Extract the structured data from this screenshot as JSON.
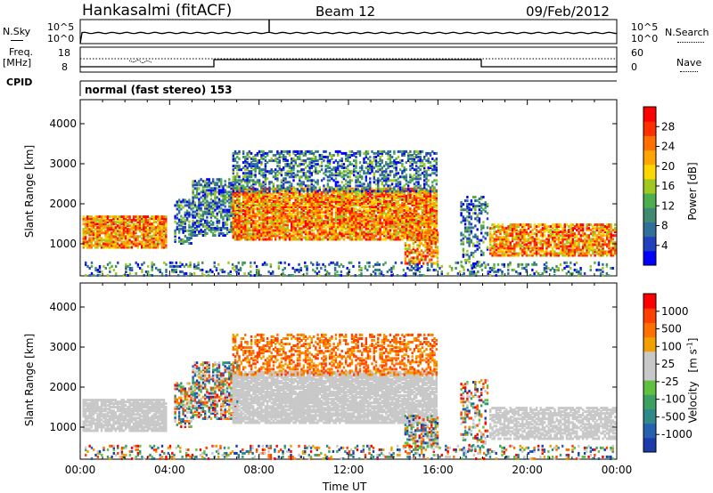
{
  "header": {
    "station": "Hankasalmi (fitACF)",
    "beam": "Beam 12",
    "date": "09/Feb/2012"
  },
  "strip_labels": {
    "nsky": "N.Sky",
    "nsearch": "N.Search",
    "freq_line1": "Freq.",
    "freq_line2": "[MHz]",
    "nave": "Nave",
    "cpid": "CPID",
    "cpid_value": "normal (fast stereo) 153",
    "nsky_ticks": [
      "10^5",
      "10^0"
    ],
    "nsearch_ticks": [
      "10^5",
      "10^0"
    ],
    "freq_ticks": [
      "18",
      "8"
    ],
    "nave_ticks": [
      "60",
      "0"
    ]
  },
  "colorbars": {
    "power": {
      "label": "Power [dB]",
      "ticks": [
        "28",
        "24",
        "20",
        "16",
        "12",
        "8",
        "4"
      ],
      "colors": [
        "#0000ff",
        "#2040c0",
        "#2f6f9a",
        "#3f8a70",
        "#4cae4c",
        "#a0c820",
        "#ffd700",
        "#ffa500",
        "#ff7000",
        "#ff3000",
        "#ff0000"
      ]
    },
    "velocity": {
      "label_text": "Velocity",
      "label_unit": "[m s",
      "label_exp": "-1",
      "label_close": "]",
      "ticks": [
        "1000",
        "500",
        "100",
        "25",
        "-25",
        "-100",
        "-500",
        "-1000"
      ],
      "colors": [
        "#1a3caa",
        "#2660b0",
        "#2e8a88",
        "#3ca060",
        "#60c040",
        "#c8c8c8",
        "#c8c8c8",
        "#f0a000",
        "#ff7000",
        "#ff4000",
        "#ff0000"
      ]
    }
  },
  "chart_data": [
    {
      "type": "heatmap",
      "name": "Power",
      "ylabel": "Slant Range [km]",
      "yticks": [
        1000,
        2000,
        3000,
        4000
      ],
      "ylim": [
        200,
        4600
      ],
      "xlim": [
        0,
        24
      ],
      "xticks": [
        "00:00",
        "04:00",
        "08:00",
        "12:00",
        "16:00",
        "20:00",
        "00:00"
      ],
      "xlabel": ""
    },
    {
      "type": "heatmap",
      "name": "Velocity",
      "ylabel": "Slant Range [km]",
      "yticks": [
        1000,
        2000,
        3000,
        4000
      ],
      "ylim": [
        200,
        4600
      ],
      "xlim": [
        0,
        24
      ],
      "xticks": [
        "00:00",
        "04:00",
        "08:00",
        "12:00",
        "16:00",
        "20:00",
        "00:00"
      ],
      "xlabel": "Time UT"
    }
  ]
}
